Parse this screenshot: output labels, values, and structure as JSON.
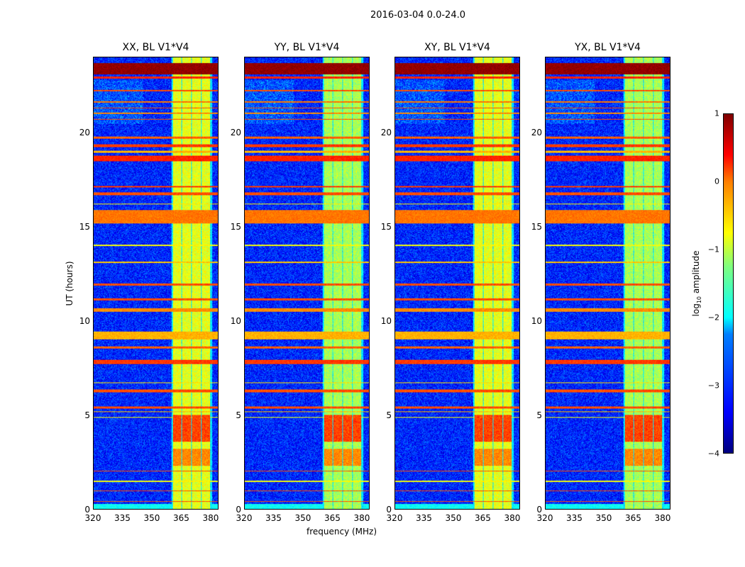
{
  "suptitle": "2016-03-04 0.0-24.0",
  "chart_data": {
    "type": "heatmap",
    "xlabel": "frequency (MHz)",
    "ylabel": "UT (hours)",
    "xlim": [
      320,
      384
    ],
    "ylim": [
      0,
      24
    ],
    "xticks": [
      "320",
      "335",
      "350",
      "365",
      "380"
    ],
    "yticks": [
      "0",
      "5",
      "10",
      "15",
      "20"
    ],
    "panels": [
      {
        "title": "XX, BL V1*V4"
      },
      {
        "title": "YY, BL V1*V4"
      },
      {
        "title": "XY, BL V1*V4"
      },
      {
        "title": "YX, BL V1*V4"
      }
    ],
    "colorbar": {
      "label": "log",
      "label_sub": "10",
      "label_rest": " amplitude",
      "range": [
        -4,
        1
      ],
      "ticks": [
        "1",
        "0",
        "−1",
        "−2",
        "−3",
        "−4"
      ]
    },
    "background_log_amplitude": -3.2,
    "bright_band_channels_mhz": [
      [
        360.5,
        365
      ],
      [
        365.5,
        370
      ],
      [
        370.5,
        375
      ],
      [
        375.5,
        380
      ]
    ],
    "band_log_amplitude": -1.0,
    "rfi_lines": [
      {
        "ut": [
          23.1,
          23.7
        ],
        "v": 0.9
      },
      {
        "ut": [
          22.9,
          23.0
        ],
        "v": 0.2
      },
      {
        "ut": [
          22.2,
          22.3
        ],
        "v": 0
      },
      {
        "ut": [
          21.6,
          21.7
        ],
        "v": -0.2
      },
      {
        "ut": [
          21.3,
          21.35
        ],
        "v": 0
      },
      {
        "ut": [
          21.0,
          21.1
        ],
        "v": -0.3
      },
      {
        "ut": [
          20.7,
          20.75
        ],
        "v": 0
      },
      {
        "ut": [
          19.7,
          19.8
        ],
        "v": -0.1
      },
      {
        "ut": [
          19.25,
          19.4
        ],
        "v": 0.1
      },
      {
        "ut": [
          18.95,
          19.05
        ],
        "v": -0.5
      },
      {
        "ut": [
          18.5,
          18.8
        ],
        "v": 0.2
      },
      {
        "ut": [
          17.1,
          17.2
        ],
        "v": 0.1
      },
      {
        "ut": [
          16.7,
          16.85
        ],
        "v": 0
      },
      {
        "ut": [
          16.2,
          16.25
        ],
        "v": -0.8
      },
      {
        "ut": [
          15.2,
          15.9
        ],
        "v": -0.2
      },
      {
        "ut": [
          14.0,
          14.05
        ],
        "v": -0.9
      },
      {
        "ut": [
          13.1,
          13.15
        ],
        "v": -0.6
      },
      {
        "ut": [
          11.9,
          12.0
        ],
        "v": 0
      },
      {
        "ut": [
          11.1,
          11.2
        ],
        "v": 0
      },
      {
        "ut": [
          10.5,
          10.7
        ],
        "v": -0.3
      },
      {
        "ut": [
          9.05,
          9.45
        ],
        "v": -0.5
      },
      {
        "ut": [
          8.55,
          8.65
        ],
        "v": -0.1
      },
      {
        "ut": [
          7.7,
          7.95
        ],
        "v": 0.1
      },
      {
        "ut": [
          6.7,
          6.75
        ],
        "v": -0.7
      },
      {
        "ut": [
          6.2,
          6.35
        ],
        "v": 0
      },
      {
        "ut": [
          5.35,
          5.45
        ],
        "v": 0
      },
      {
        "ut": [
          5.15,
          5.2
        ],
        "v": -0.5
      },
      {
        "ut": [
          4.85,
          4.9
        ],
        "v": -0.9
      },
      {
        "ut": [
          2.0,
          2.05
        ],
        "v": 0
      },
      {
        "ut": [
          1.45,
          1.52
        ],
        "v": -0.9
      },
      {
        "ut": [
          0.95,
          1.0
        ],
        "v": 0
      },
      {
        "ut": [
          0.4,
          0.45
        ],
        "v": 0
      }
    ],
    "bright_episode_ut": [
      3.6,
      5.0
    ]
  }
}
